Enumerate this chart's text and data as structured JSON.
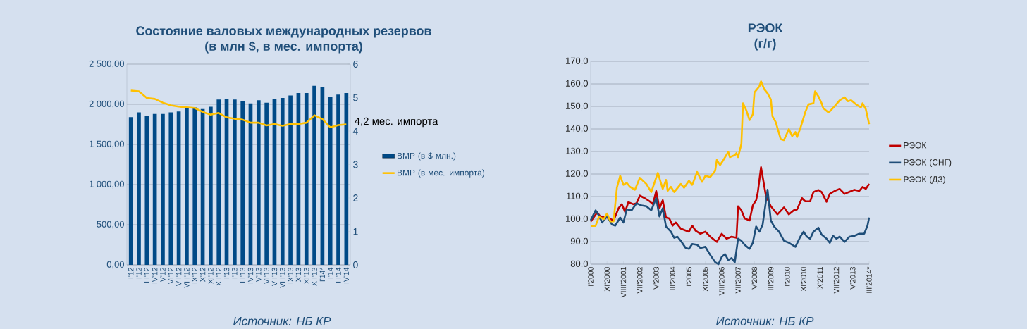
{
  "chart_data": [
    {
      "type": "bar",
      "title": "Состояние валовых международных резервов",
      "subtitle": "(в млн $, в мес. импорта)",
      "categories": [
        "I'12",
        "II'12",
        "III'12",
        "IV'12",
        "V'12",
        "VI'12",
        "VII'12",
        "VIII'12",
        "IX'12",
        "X'12",
        "XI'12",
        "XII'12",
        "I'13",
        "II'13",
        "III'13",
        "IV'13",
        "V'13",
        "VI'13",
        "VII'13",
        "VIII'13",
        "IX'13",
        "X'13",
        "XI'13",
        "XII'13",
        "I'14*",
        "II'14",
        "III'14",
        "IV'14"
      ],
      "series": [
        {
          "name": "ВМР (в $ млн.)",
          "color": "#004a87",
          "values": [
            1840,
            1900,
            1860,
            1880,
            1880,
            1900,
            1910,
            1950,
            1960,
            1940,
            1970,
            2060,
            2070,
            2060,
            2040,
            2010,
            2050,
            2020,
            2070,
            2080,
            2110,
            2140,
            2140,
            2230,
            2210,
            2090,
            2120,
            2140
          ]
        },
        {
          "name": "ВМР (в мес. импорта)",
          "type": "line",
          "axis": "y2",
          "color": "#ffc000",
          "values": [
            5.21,
            5.19,
            4.99,
            4.96,
            4.85,
            4.77,
            4.73,
            4.71,
            4.69,
            4.57,
            4.49,
            4.54,
            4.41,
            4.37,
            4.34,
            4.25,
            4.25,
            4.17,
            4.21,
            4.16,
            4.21,
            4.21,
            4.25,
            4.47,
            4.36,
            4.11,
            4.18,
            4.2
          ]
        }
      ],
      "ylim": [
        0,
        2500
      ],
      "yticks": [
        {
          "value": 0,
          "label": "0,00"
        },
        {
          "value": 500,
          "label": "500,00"
        },
        {
          "value": 1000,
          "label": "1 000,00"
        },
        {
          "value": 1500,
          "label": "1 500,00"
        },
        {
          "value": 2000,
          "label": "2 000,00"
        },
        {
          "value": 2500,
          "label": "2 500,00"
        }
      ],
      "y2lim": [
        0,
        6
      ],
      "y2ticks": [
        0,
        1,
        2,
        3,
        4,
        5,
        6
      ],
      "grid": "y",
      "legend": "right",
      "annotations": [
        "4,2 мес. импорта",
        "Источник: НБ КР"
      ]
    },
    {
      "type": "line",
      "title": "РЭОК",
      "subtitle": "(г/г)",
      "series": [
        {
          "name": "РЭОК",
          "color": "#c00000",
          "x": [
            "2000-01",
            "2000-05",
            "2000-07",
            "2000-11",
            "2001-03",
            "2001-06",
            "2001-08",
            "2001-10",
            "2001-12",
            "2002-03",
            "2002-05",
            "2002-07",
            "2002-10",
            "2003-01",
            "2003-03",
            "2003-05",
            "2003-07",
            "2003-09",
            "2003-11",
            "2004-01",
            "2004-03",
            "2004-05",
            "2004-08",
            "2004-11",
            "2005-01",
            "2005-03",
            "2005-05",
            "2005-08",
            "2005-11",
            "2006-02",
            "2006-06",
            "2006-09",
            "2006-12",
            "2007-03",
            "2007-06",
            "2007-07",
            "2007-09",
            "2007-11",
            "2008-02",
            "2008-04",
            "2008-06",
            "2008-07",
            "2008-09",
            "2008-12",
            "2009-03",
            "2009-07",
            "2009-11",
            "2010-02",
            "2010-05",
            "2010-07",
            "2010-10",
            "2010-12",
            "2011-03",
            "2011-05",
            "2011-08",
            "2011-10",
            "2012-01",
            "2012-03",
            "2012-06",
            "2012-09",
            "2012-12",
            "2013-03",
            "2013-06",
            "2013-09",
            "2013-11",
            "2014-01",
            "2014-03"
          ],
          "values": [
            98.9,
            103,
            101,
            100.7,
            99.4,
            104.8,
            106.6,
            103.2,
            107.5,
            106.6,
            107,
            110.4,
            109.3,
            107.9,
            106.6,
            112.4,
            104.8,
            108.4,
            100.7,
            100.3,
            97.1,
            98.5,
            95.8,
            94.9,
            94.4,
            97.1,
            94.9,
            93.5,
            94.4,
            92.2,
            89.9,
            93.5,
            91.3,
            92.2,
            91.7,
            105.7,
            103.9,
            100.3,
            99.4,
            106.1,
            108.4,
            111.7,
            123,
            110.3,
            105.7,
            102.1,
            105.2,
            102.1,
            103.9,
            104.3,
            109.3,
            107.9,
            107.9,
            112,
            112.9,
            112,
            107.7,
            111.2,
            112.5,
            113.4,
            111.2,
            112.1,
            113,
            112.5,
            114.3,
            113.4,
            115.6
          ]
        },
        {
          "name": "РЭОК (СНГ)",
          "color": "#1f4e79",
          "x": [
            "2000-01",
            "2000-04",
            "2000-06",
            "2000-08",
            "2000-11",
            "2001-02",
            "2001-04",
            "2001-07",
            "2001-09",
            "2001-11",
            "2002-02",
            "2002-05",
            "2002-08",
            "2002-11",
            "2003-02",
            "2003-05",
            "2003-07",
            "2003-09",
            "2003-11",
            "2004-02",
            "2004-04",
            "2004-06",
            "2004-08",
            "2004-11",
            "2005-01",
            "2005-03",
            "2005-06",
            "2005-08",
            "2005-11",
            "2006-02",
            "2006-05",
            "2006-07",
            "2006-09",
            "2006-11",
            "2007-01",
            "2007-03",
            "2007-05",
            "2007-07",
            "2007-09",
            "2007-11",
            "2008-02",
            "2008-04",
            "2008-06",
            "2008-08",
            "2008-10",
            "2009-01",
            "2009-03",
            "2009-05",
            "2009-08",
            "2009-11",
            "2010-02",
            "2010-04",
            "2010-06",
            "2010-09",
            "2010-11",
            "2011-01",
            "2011-03",
            "2011-05",
            "2011-08",
            "2011-10",
            "2012-01",
            "2012-03",
            "2012-05",
            "2012-07",
            "2012-09",
            "2012-12",
            "2013-03",
            "2013-06",
            "2013-09",
            "2013-12",
            "2014-02",
            "2014-03"
          ],
          "values": [
            99.4,
            103.9,
            101.6,
            98.5,
            101.2,
            97.6,
            97.1,
            100.7,
            98.5,
            104.3,
            103.9,
            107,
            106.1,
            105.7,
            103.9,
            109.3,
            101.2,
            104.8,
            96.7,
            94.4,
            91.7,
            92.2,
            90.4,
            87.2,
            86.8,
            89,
            88.6,
            87.2,
            87.7,
            84.1,
            80.9,
            80,
            83.2,
            84.5,
            81.8,
            82.7,
            80.9,
            91.3,
            90.4,
            88.6,
            86.8,
            89.5,
            96.7,
            94.4,
            97.6,
            113,
            99.4,
            96.7,
            94.4,
            90.4,
            89.5,
            88.6,
            87.7,
            92.2,
            94.4,
            92.2,
            91.3,
            94.4,
            96.2,
            93.1,
            91.3,
            89.5,
            92.6,
            91.3,
            92.2,
            89.9,
            92.2,
            92.6,
            93.5,
            93.5,
            97.1,
            100.7
          ]
        },
        {
          "name": "РЭОК (ДЗ)",
          "color": "#ffc000",
          "x": [
            "2000-01",
            "2000-04",
            "2000-06",
            "2000-09",
            "2000-11",
            "2001-01",
            "2001-03",
            "2001-05",
            "2001-07",
            "2001-09",
            "2001-11",
            "2002-01",
            "2002-04",
            "2002-07",
            "2002-11",
            "2003-02",
            "2003-06",
            "2003-09",
            "2003-11",
            "2003-12",
            "2004-02",
            "2004-04",
            "2004-08",
            "2004-10",
            "2005-01",
            "2005-03",
            "2005-06",
            "2005-09",
            "2005-11",
            "2006-02",
            "2006-05",
            "2006-06",
            "2006-08",
            "2006-10",
            "2007-01",
            "2007-02",
            "2007-05",
            "2007-06",
            "2007-07",
            "2007-09",
            "2007-10",
            "2007-12",
            "2008-02",
            "2008-04",
            "2008-05",
            "2008-08",
            "2008-09",
            "2008-11",
            "2009-01",
            "2009-03",
            "2009-04",
            "2009-06",
            "2009-09",
            "2009-11",
            "2010-02",
            "2010-04",
            "2010-06",
            "2010-07",
            "2010-09",
            "2010-12",
            "2011-02",
            "2011-05",
            "2011-06",
            "2011-08",
            "2011-10",
            "2011-11",
            "2012-02",
            "2012-03",
            "2012-06",
            "2012-09",
            "2012-12",
            "2013-02",
            "2013-04",
            "2013-07",
            "2013-10",
            "2013-11",
            "2014-01",
            "2014-03"
          ],
          "values": [
            97,
            97,
            101,
            100,
            102.5,
            99,
            99,
            113.9,
            119.2,
            115.2,
            116.1,
            114.3,
            113,
            118.3,
            115.6,
            112,
            120.5,
            113.4,
            117.4,
            112.5,
            114.3,
            112,
            115.6,
            113.9,
            117,
            115.2,
            120.9,
            116.5,
            119.2,
            118.7,
            121.4,
            126.2,
            124,
            126.2,
            129.8,
            127.5,
            128.4,
            129.3,
            127.5,
            133.3,
            151.4,
            148.3,
            143.9,
            146.5,
            156.2,
            158.9,
            161.1,
            157.6,
            155.8,
            153.1,
            145.6,
            143,
            135.5,
            135,
            139.9,
            136.8,
            138.6,
            136.4,
            140.3,
            147.4,
            150.9,
            151.4,
            156.7,
            154.5,
            151.4,
            149.2,
            147.4,
            147.8,
            150.1,
            152.7,
            154,
            152.3,
            152.7,
            150.9,
            149.6,
            151.4,
            148.7,
            142.1
          ]
        }
      ],
      "xlim": [
        "2000-01",
        "2014-03"
      ],
      "xticks": [
        {
          "value": "2000-01",
          "label": "I'2000"
        },
        {
          "value": "2000-11",
          "label": "XI'2000"
        },
        {
          "value": "2001-09",
          "label": "VIIII'2001"
        },
        {
          "value": "2002-07",
          "label": "VII'2002"
        },
        {
          "value": "2003-05",
          "label": "V'2003"
        },
        {
          "value": "2004-03",
          "label": "III'2004"
        },
        {
          "value": "2005-01",
          "label": "I'2005"
        },
        {
          "value": "2005-11",
          "label": "XI'2005"
        },
        {
          "value": "2006-09",
          "label": "VIII'2006"
        },
        {
          "value": "2007-07",
          "label": "VII'2007"
        },
        {
          "value": "2008-05",
          "label": "V'2008"
        },
        {
          "value": "2009-03",
          "label": "III'2009"
        },
        {
          "value": "2010-01",
          "label": "I'2010"
        },
        {
          "value": "2010-11",
          "label": "XI'2010"
        },
        {
          "value": "2011-09",
          "label": "IX'2011"
        },
        {
          "value": "2012-07",
          "label": "VII'2012"
        },
        {
          "value": "2013-05",
          "label": "V'2013"
        },
        {
          "value": "2014-03",
          "label": "III'2014*"
        }
      ],
      "ylim": [
        80,
        170
      ],
      "yticks": [
        {
          "value": 80,
          "label": "80,0"
        },
        {
          "value": 90,
          "label": "90,0"
        },
        {
          "value": 100,
          "label": "100,0"
        },
        {
          "value": 110,
          "label": "110,0"
        },
        {
          "value": 120,
          "label": "120,0"
        },
        {
          "value": 130,
          "label": "130,0"
        },
        {
          "value": 140,
          "label": "140,0"
        },
        {
          "value": 150,
          "label": "150,0"
        },
        {
          "value": 160,
          "label": "160,0"
        },
        {
          "value": 170,
          "label": "170,0"
        }
      ],
      "grid": "y",
      "legend": "right",
      "marker": "none",
      "annotations": [
        "Источник: НБ КР"
      ]
    }
  ]
}
